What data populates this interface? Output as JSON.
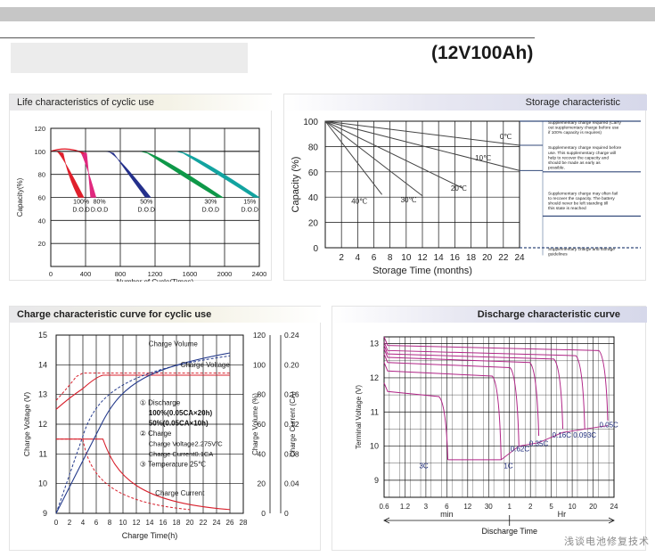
{
  "header": {
    "model": "(12V100Ah)"
  },
  "chart_data": [
    {
      "id": "life",
      "type": "area",
      "title": "Life characteristics of cyclic use",
      "xlabel": "Number of Cycle(Times)",
      "ylabel": "Capacity(%)",
      "xlim": [
        0,
        2400
      ],
      "ylim": [
        0,
        120
      ],
      "xticks": [
        "0",
        "400",
        "800",
        "1200",
        "1600",
        "2000",
        "2400"
      ],
      "yticks": [
        "20",
        "40",
        "60",
        "80",
        "100",
        "120"
      ],
      "series": [
        {
          "name": "100% D.O.D",
          "color": "#e0202c",
          "end_cycles": 380
        },
        {
          "name": "80% D.O.D",
          "color": "#e0287e",
          "end_cycles": 520
        },
        {
          "name": "50% D.O.D",
          "color": "#24308c",
          "end_cycles": 1150
        },
        {
          "name": "30% D.O.D",
          "color": "#0e9848",
          "end_cycles": 1980
        },
        {
          "name": "15% D.O.D",
          "color": "#12a3a0",
          "end_cycles": 2400
        }
      ],
      "labels": [
        {
          "pct": "100%",
          "dod": "D.O.D",
          "x": 350
        },
        {
          "pct": "80%",
          "dod": "D.O.D",
          "x": 560
        },
        {
          "pct": "50%",
          "dod": "D.O.D",
          "x": 1100
        },
        {
          "pct": "30%",
          "dod": "D.O.D",
          "x": 1840
        },
        {
          "pct": "15%",
          "dod": "D.O.D",
          "x": 2290
        }
      ]
    },
    {
      "id": "storage",
      "type": "line",
      "title": "Storage characteristic",
      "xlabel": "Storage Time (months)",
      "ylabel": "Capacity  (%)",
      "xlim": [
        0,
        24
      ],
      "ylim": [
        0,
        100
      ],
      "xticks": [
        "2",
        "4",
        "6",
        "8",
        "10",
        "12",
        "14",
        "16",
        "18",
        "20",
        "22",
        "24"
      ],
      "yticks": [
        "0",
        "20",
        "40",
        "60",
        "80",
        "100"
      ],
      "series": [
        {
          "name": "0℃",
          "points": [
            [
              0,
              100
            ],
            [
              24,
              81
            ]
          ]
        },
        {
          "name": "10℃",
          "points": [
            [
              0,
              100
            ],
            [
              24,
              61
            ]
          ]
        },
        {
          "name": "20℃",
          "points": [
            [
              0,
              100
            ],
            [
              17,
              47
            ]
          ]
        },
        {
          "name": "30℃",
          "points": [
            [
              0,
              100
            ],
            [
              12,
              41
            ]
          ]
        },
        {
          "name": "40℃",
          "points": [
            [
              0,
              100
            ],
            [
              7,
              42
            ]
          ]
        }
      ],
      "series_labels": [
        {
          "text": "0℃",
          "x": 22.3,
          "y": 86
        },
        {
          "text": "10℃",
          "x": 19.5,
          "y": 69
        },
        {
          "text": "20℃",
          "x": 16.5,
          "y": 45
        },
        {
          "text": "30℃",
          "x": 10.3,
          "y": 36
        },
        {
          "text": "40℃",
          "x": 4.2,
          "y": 35
        }
      ],
      "notes": [
        "Supplementary charge required (Carry out supplementary charge before use if 100% capacity is requires)",
        "Supplementary charge required before use. This supplementary charge will help to recover the capacity and should be made  as early as possible.",
        "Supplementary charge may often fail to recover the capacity. The battery should never be left standing till this state is reached",
        "Supplementary charge and storage guidelines"
      ]
    },
    {
      "id": "charge",
      "type": "line",
      "title": "Charge characteristic curve for cyclic use",
      "xlabel": "Charge Time(h)",
      "ylabel": "Charge Voltage (V)",
      "ylabel2": "Charge Volume (%)",
      "ylabel3": "Charge Current (CA)",
      "xlim": [
        0,
        28
      ],
      "ylim": [
        9,
        15
      ],
      "xticks": [
        "0",
        "2",
        "4",
        "6",
        "8",
        "10",
        "12",
        "14",
        "16",
        "18",
        "20",
        "22",
        "24",
        "26",
        "28"
      ],
      "yticks": [
        "9",
        "10",
        "11",
        "12",
        "13",
        "14",
        "15"
      ],
      "y2ticks": [
        "0",
        "20",
        "40",
        "60",
        "80",
        "100",
        "120"
      ],
      "y3ticks": [
        "0",
        "0.04",
        "0.08",
        "0.12",
        "0.16",
        "0.20",
        "0.24"
      ],
      "series": [
        {
          "name": "Charge Volume",
          "axis": "volume"
        },
        {
          "name": "Charge Voltage",
          "axis": "voltage"
        },
        {
          "name": "Charge Current",
          "axis": "current"
        }
      ],
      "legend": [
        "① Discharge",
        "100%(0.05CA×20h)",
        "50%(0.05CA×10h)",
        "② Charge",
        "Charge Voltage2.275V/C",
        "Charge Current0.1CA",
        "③ Temperature 25℃"
      ]
    },
    {
      "id": "discharge",
      "type": "line",
      "title": "Discharge characteristic curve",
      "xlabel": "Discharge Time",
      "ylabel": "Terminal Voltage (V)",
      "ylim": [
        8.5,
        13.2
      ],
      "xticks": [
        "0.6",
        "1.2",
        "3",
        "6",
        "12",
        "30",
        "1",
        "2",
        "5",
        "10",
        "20",
        "24"
      ],
      "yticks": [
        "9",
        "10",
        "11",
        "12",
        "13"
      ],
      "unit_min": "min",
      "unit_hr": "Hr",
      "rates": [
        {
          "name": "3C",
          "label_x": 1.9,
          "label_y": 9.35
        },
        {
          "name": "1C",
          "label_x": 5.95,
          "label_y": 9.35
        },
        {
          "name": "0.62C",
          "label_x": 6.5,
          "label_y": 9.85
        },
        {
          "name": "0.35C",
          "label_x": 7.4,
          "label_y": 10.0
        },
        {
          "name": "0.16C",
          "label_x": 8.5,
          "label_y": 10.25
        },
        {
          "name": "0.093C",
          "label_x": 9.6,
          "label_y": 10.25
        },
        {
          "name": "0.05C",
          "label_x": 10.75,
          "label_y": 10.55
        }
      ]
    }
  ],
  "watermark": "浅谈电池修复技术"
}
